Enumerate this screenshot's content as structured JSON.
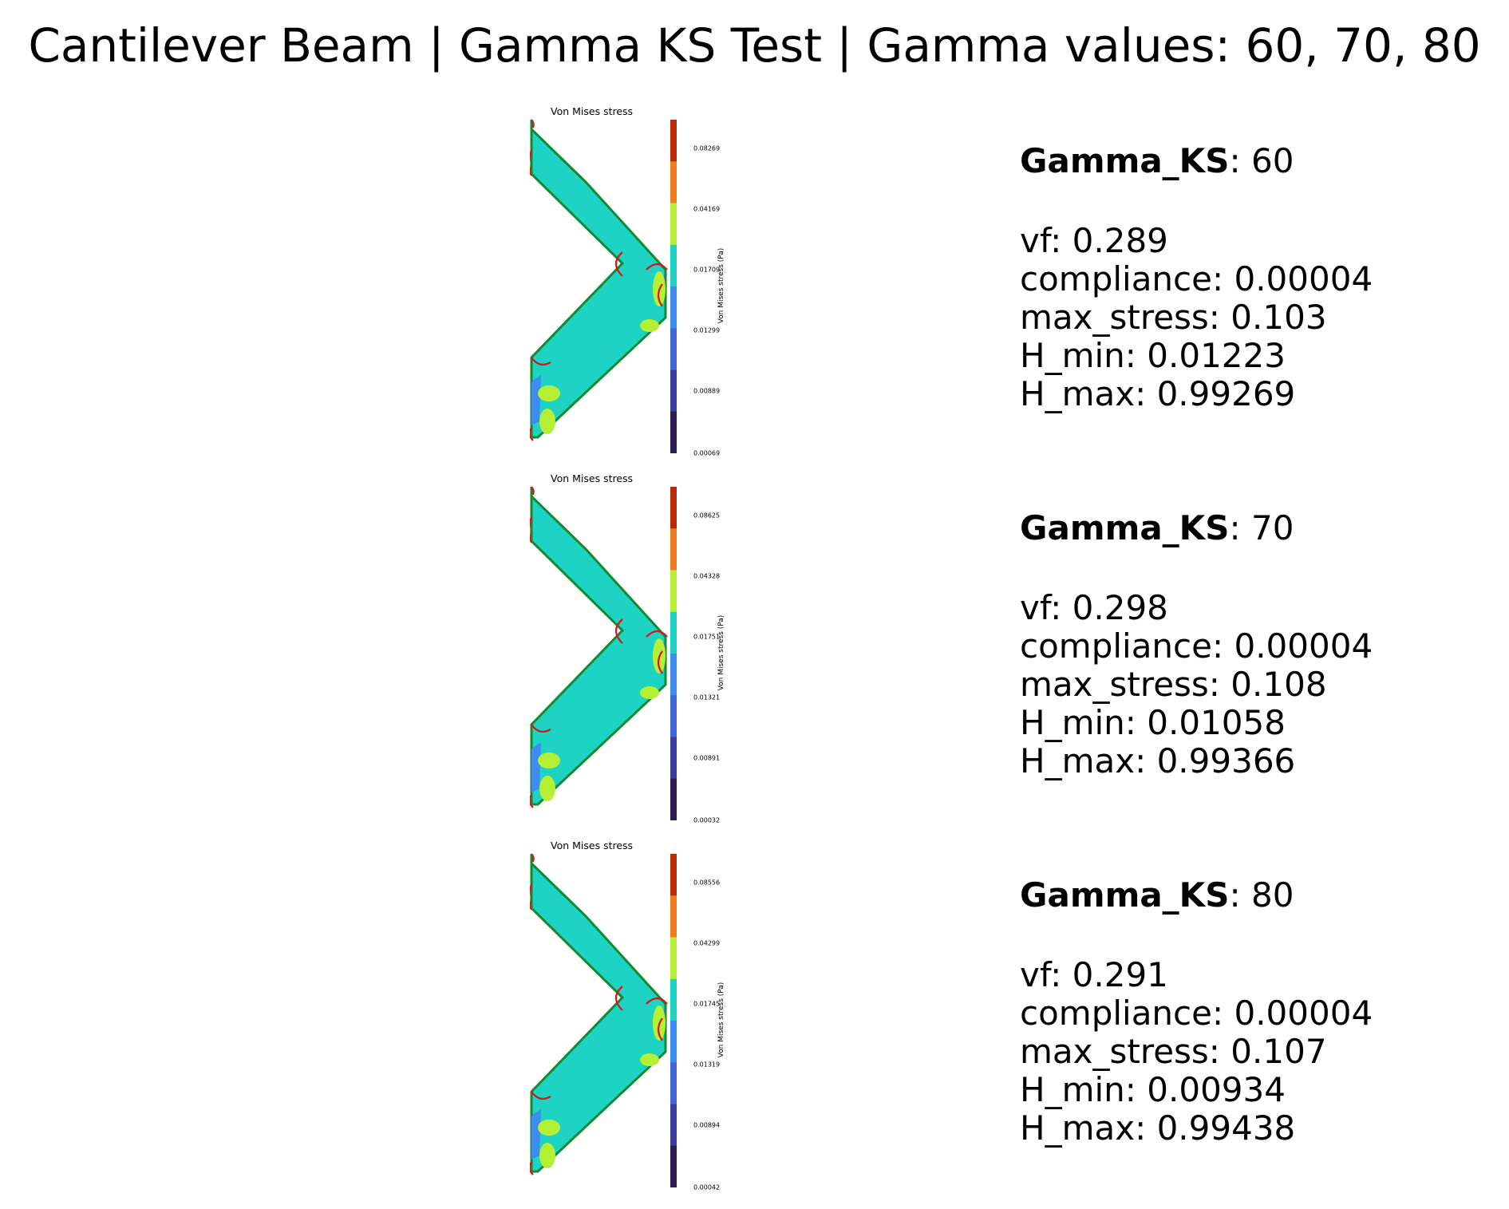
{
  "title": "Cantilever Beam | Gamma KS Test | Gamma values: 60, 70, 80",
  "colormap": [
    "#2b1c52",
    "#3b3d9e",
    "#4166d6",
    "#3f8cf0",
    "#1dd4c4",
    "#b5f034",
    "#f07b22",
    "#b82a08"
  ],
  "panels": [
    {
      "plot_title": "Von Mises stress",
      "colorbar_label": "Von Mises stress (Pa)",
      "ticks": [
        "0.08269",
        "0.04169",
        "0.01709",
        "0.01299",
        "0.00889",
        "0.00069"
      ],
      "gamma_label": "Gamma_KS",
      "gamma_value": ": 60",
      "metrics": [
        "vf: 0.289",
        "compliance: 0.00004",
        "max_stress: 0.103",
        "H_min: 0.01223",
        "H_max: 0.99269"
      ]
    },
    {
      "plot_title": "Von Mises stress",
      "colorbar_label": "Von Mises stress (Pa)",
      "ticks": [
        "0.08625",
        "0.04328",
        "0.01751",
        "0.01321",
        "0.00891",
        "0.00032"
      ],
      "gamma_label": "Gamma_KS",
      "gamma_value": ": 70",
      "metrics": [
        "vf: 0.298",
        "compliance: 0.00004",
        "max_stress: 0.108",
        "H_min: 0.01058",
        "H_max: 0.99366"
      ]
    },
    {
      "plot_title": "Von Mises stress",
      "colorbar_label": "Von Mises stress (Pa)",
      "ticks": [
        "0.08556",
        "0.04299",
        "0.01745",
        "0.01319",
        "0.00894",
        "0.00042"
      ],
      "gamma_label": "Gamma_KS",
      "gamma_value": ": 80",
      "metrics": [
        "vf: 0.291",
        "compliance: 0.00004",
        "max_stress: 0.107",
        "H_min: 0.00934",
        "H_max: 0.99438"
      ]
    }
  ]
}
